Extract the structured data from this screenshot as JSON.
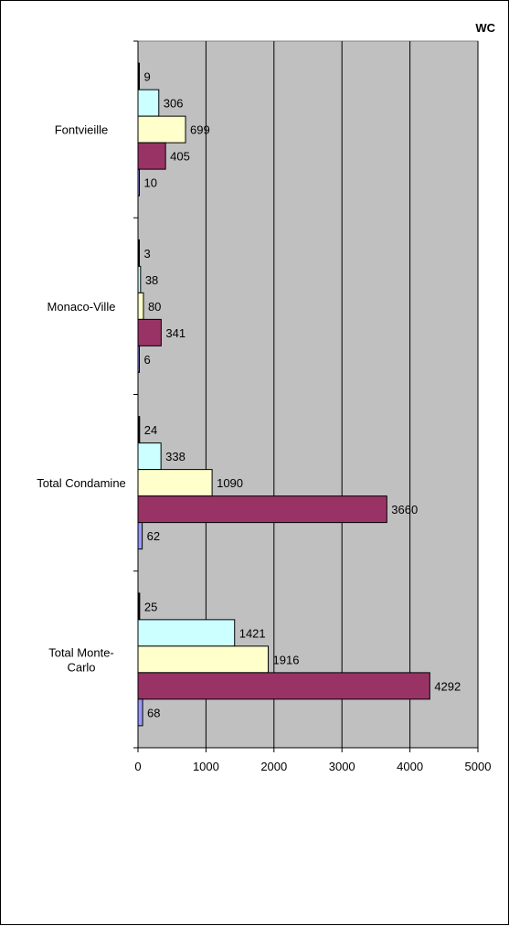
{
  "chart_data": {
    "type": "bar",
    "orientation": "horizontal",
    "title": "WC",
    "categories": [
      "Fontvieille",
      "Monaco-Ville",
      "Total Condamine",
      "Total Monte-Carlo"
    ],
    "category_display_lines": [
      [
        "Fontvieille"
      ],
      [
        "Monaco-Ville"
      ],
      [
        "Total Condamine"
      ],
      [
        "Total Monte-",
        "Carlo"
      ]
    ],
    "series": [
      {
        "color": "#000000",
        "values": [
          9,
          3,
          24,
          25
        ]
      },
      {
        "color": "#ccffff",
        "values": [
          306,
          38,
          338,
          1421
        ]
      },
      {
        "color": "#ffffcc",
        "values": [
          699,
          80,
          1090,
          1916
        ]
      },
      {
        "color": "#993366",
        "values": [
          405,
          341,
          3660,
          4292
        ]
      },
      {
        "color": "#9999ff",
        "values": [
          10,
          6,
          62,
          68
        ]
      }
    ],
    "xlim": [
      0,
      5000
    ],
    "x_ticks": [
      "0",
      "1000",
      "2000",
      "3000",
      "4000",
      "5000"
    ],
    "plot_background": "#c0c0c0",
    "grid": true,
    "legend": "none"
  }
}
